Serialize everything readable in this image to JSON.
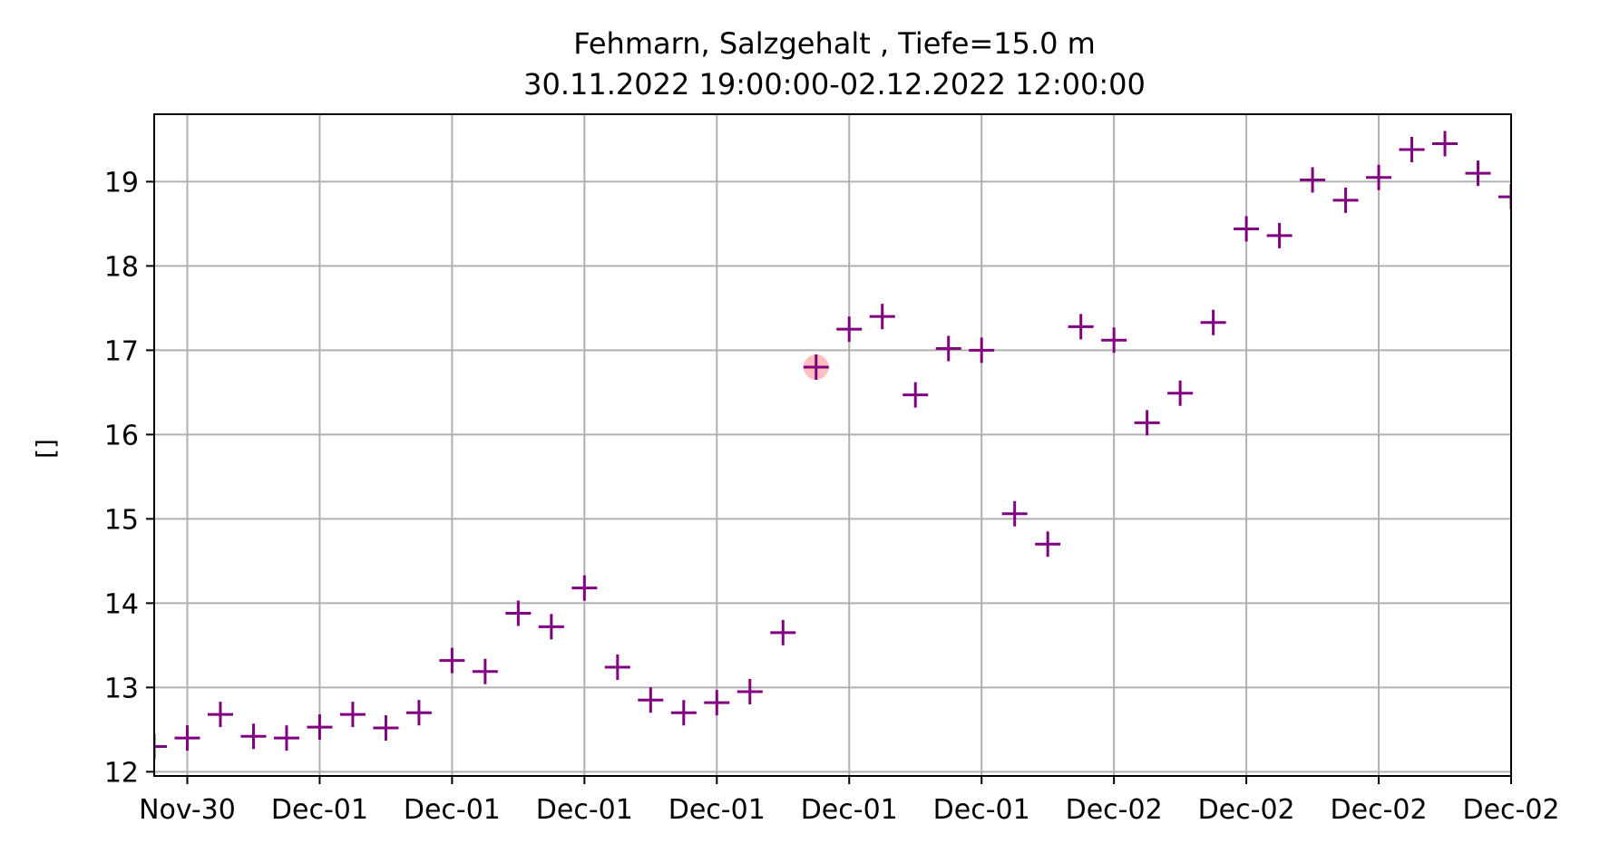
{
  "chart_data": {
    "type": "scatter",
    "title": "Fehmarn, Salzgehalt , Tiefe=15.0 m",
    "subtitle": "30.11.2022 19:00:00-02.12.2022 12:00:00",
    "xlabel": "",
    "ylabel": "[]",
    "xlim": [
      -0.25,
      40.75
    ],
    "ylim": [
      11.95,
      19.8
    ],
    "yticks": [
      12,
      13,
      14,
      15,
      16,
      17,
      18,
      19
    ],
    "xticks": [
      {
        "x": 0.75,
        "label": "Nov-30"
      },
      {
        "x": 4.75,
        "label": "Dec-01"
      },
      {
        "x": 8.75,
        "label": "Dec-01"
      },
      {
        "x": 12.75,
        "label": "Dec-01"
      },
      {
        "x": 16.75,
        "label": "Dec-01"
      },
      {
        "x": 20.75,
        "label": "Dec-01"
      },
      {
        "x": 24.75,
        "label": "Dec-01"
      },
      {
        "x": 28.75,
        "label": "Dec-02"
      },
      {
        "x": 32.75,
        "label": "Dec-02"
      },
      {
        "x": 36.75,
        "label": "Dec-02"
      },
      {
        "x": 40.75,
        "label": "Dec-02"
      }
    ],
    "grid": true,
    "marker": "+",
    "series": [
      {
        "name": "Salzgehalt",
        "color": "#800080",
        "x": [
          -0.25,
          0.75,
          1.75,
          2.75,
          3.75,
          4.75,
          5.75,
          6.75,
          7.75,
          8.75,
          9.75,
          10.75,
          11.75,
          12.75,
          13.75,
          14.75,
          15.75,
          16.75,
          17.75,
          18.75,
          19.75,
          20.75,
          21.75,
          22.75,
          23.75,
          24.75,
          25.75,
          26.75,
          27.75,
          28.75,
          29.75,
          30.75,
          31.75,
          32.75,
          33.75,
          34.75,
          35.75,
          36.75,
          37.75,
          38.75,
          39.75,
          40.75
        ],
        "y": [
          12.3,
          12.4,
          12.68,
          12.42,
          12.4,
          12.53,
          12.68,
          12.52,
          12.7,
          13.32,
          13.19,
          13.88,
          13.72,
          14.18,
          13.24,
          12.85,
          12.7,
          12.82,
          12.95,
          13.65,
          16.8,
          17.25,
          17.4,
          16.47,
          17.02,
          17.0,
          15.06,
          14.7,
          17.28,
          17.12,
          16.14,
          16.49,
          17.33,
          18.44,
          18.36,
          19.02,
          18.78,
          19.05,
          19.38,
          19.45,
          19.1,
          18.82
        ]
      }
    ],
    "highlight": {
      "x": 19.75,
      "y": 16.8,
      "color": "#ffaaaa"
    }
  }
}
